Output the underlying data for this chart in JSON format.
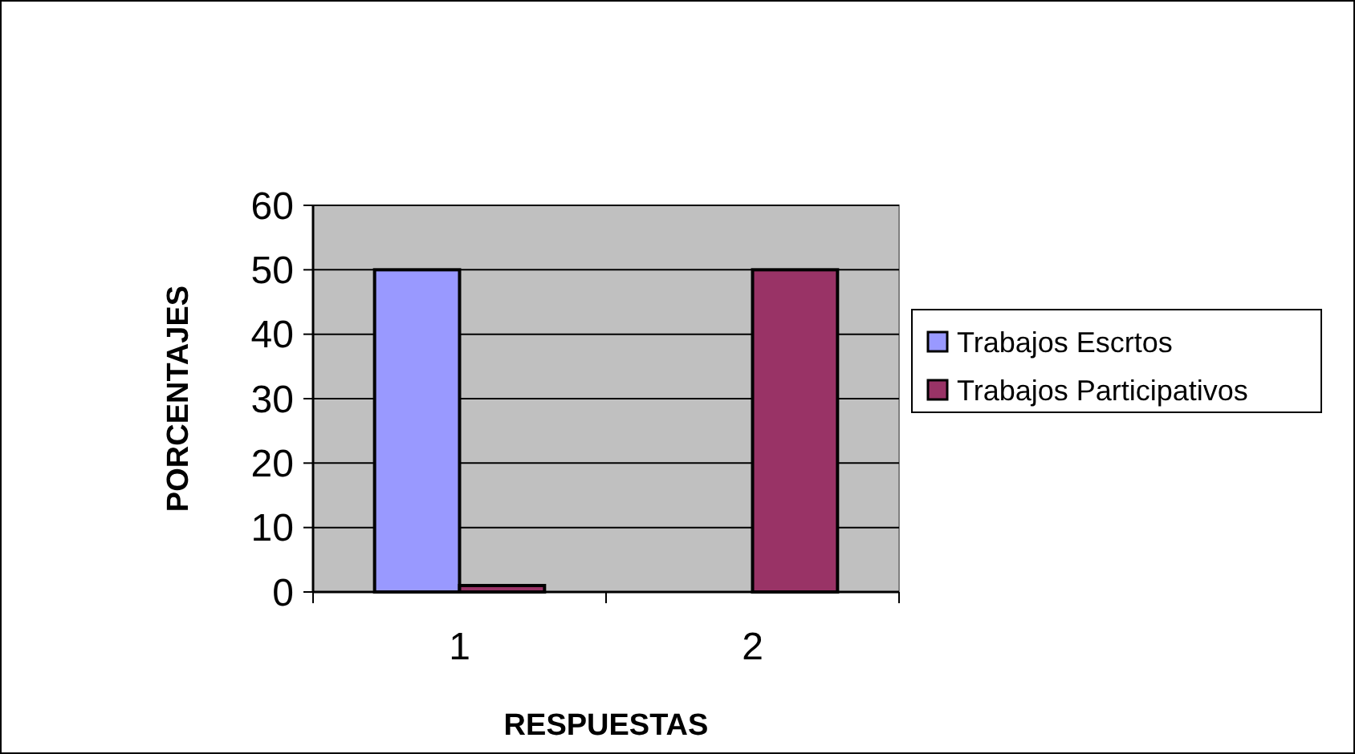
{
  "chart_data": {
    "type": "bar",
    "xlabel": "RESPUESTAS",
    "ylabel": "PORCENTAJES",
    "categories": [
      "1",
      "2"
    ],
    "series": [
      {
        "name": "Trabajos Escrtos",
        "color": "#9999ff",
        "values": [
          50,
          null
        ]
      },
      {
        "name": "Trabajos Participativos",
        "color": "#993366",
        "values": [
          1,
          50
        ]
      }
    ],
    "ylim": [
      0,
      60
    ],
    "yticks": [
      0,
      10,
      20,
      30,
      40,
      50,
      60
    ],
    "grid": "y",
    "legend": "right"
  }
}
